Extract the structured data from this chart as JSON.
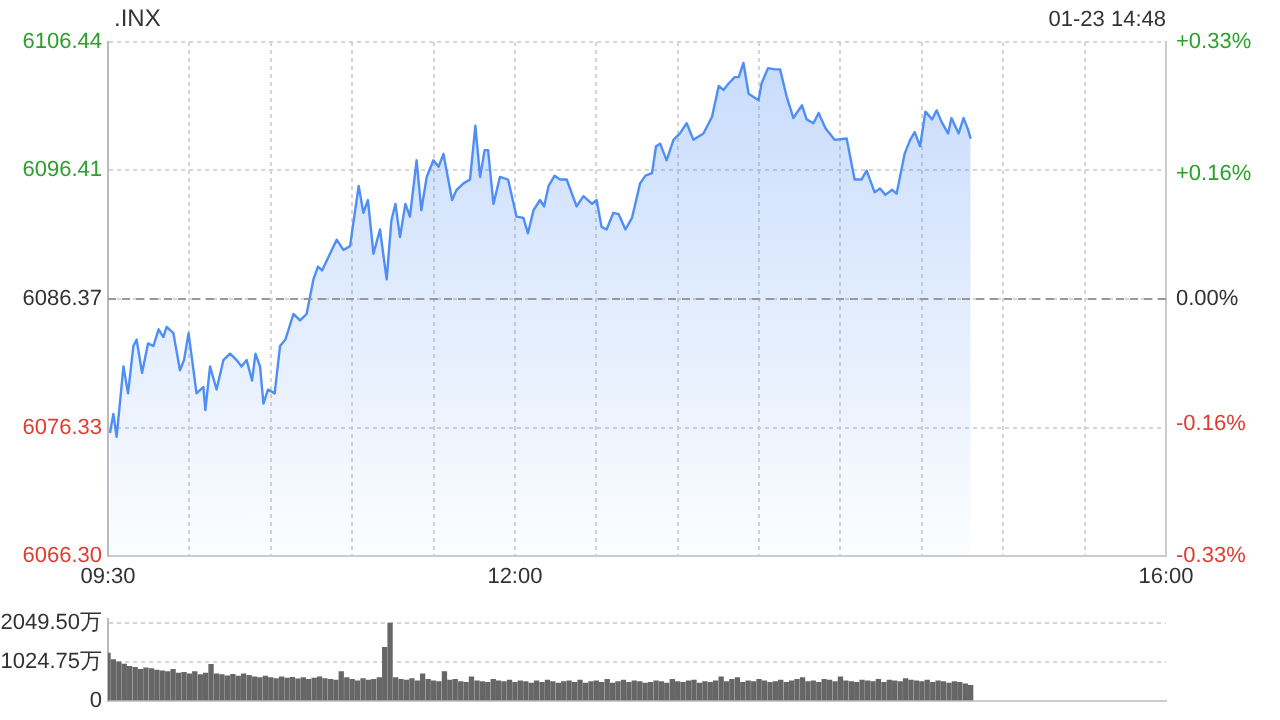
{
  "chart_data": [
    {
      "type": "area",
      "title": ".INX",
      "annotations": [
        "01-23 14:48"
      ],
      "x": [
        9.512,
        9.533,
        9.553,
        9.595,
        9.623,
        9.656,
        9.676,
        9.709,
        9.746,
        9.779,
        9.811,
        9.84,
        9.86,
        9.902,
        9.942,
        9.967,
        9.995,
        10.044,
        10.086,
        10.098,
        10.127,
        10.167,
        10.209,
        10.25,
        10.29,
        10.32,
        10.352,
        10.385,
        10.406,
        10.434,
        10.455,
        10.483,
        10.524,
        10.557,
        10.59,
        10.639,
        10.68,
        10.72,
        10.762,
        10.79,
        10.815,
        10.864,
        10.905,
        10.946,
        10.987,
        11.04,
        11.069,
        11.097,
        11.131,
        11.171,
        11.212,
        11.241,
        11.266,
        11.294,
        11.327,
        11.355,
        11.396,
        11.425,
        11.458,
        11.499,
        11.531,
        11.561,
        11.614,
        11.642,
        11.684,
        11.724,
        11.757,
        11.786,
        11.814,
        11.835,
        11.868,
        11.908,
        11.958,
        12.01,
        12.052,
        12.08,
        12.114,
        12.154,
        12.179,
        12.207,
        12.244,
        12.277,
        12.318,
        12.379,
        12.421,
        12.474,
        12.502,
        12.532,
        12.563,
        12.605,
        12.637,
        12.679,
        12.719,
        12.769,
        12.802,
        12.842,
        12.867,
        12.892,
        12.932,
        12.974,
        13.014,
        13.055,
        13.097,
        13.158,
        13.211,
        13.252,
        13.281,
        13.313,
        13.35,
        13.375,
        13.404,
        13.436,
        13.497,
        13.515,
        13.555,
        13.596,
        13.629,
        13.669,
        13.711,
        13.731,
        13.764,
        13.792,
        13.834,
        13.866,
        13.908,
        13.964,
        14.038,
        14.087,
        14.129,
        14.161,
        14.21,
        14.243,
        14.276,
        14.317,
        14.345,
        14.394,
        14.428,
        14.456,
        14.489,
        14.522,
        14.563,
        14.591,
        14.621,
        14.661,
        14.682,
        14.726,
        14.756,
        14.784,
        14.8
      ],
      "series": [
        {
          "color": "#4f8ef7",
          "values": [
            6075.9,
            6077.4,
            6075.6,
            6081.1,
            6079.0,
            6082.7,
            6083.2,
            6080.6,
            6082.9,
            6082.7,
            6084.0,
            6083.4,
            6084.2,
            6083.7,
            6080.8,
            6081.6,
            6083.7,
            6079.0,
            6079.5,
            6077.7,
            6081.1,
            6079.3,
            6081.6,
            6082.1,
            6081.6,
            6081.1,
            6081.6,
            6080.0,
            6082.1,
            6081.1,
            6078.2,
            6079.3,
            6079.0,
            6082.7,
            6083.2,
            6085.2,
            6084.7,
            6085.2,
            6087.9,
            6088.9,
            6088.6,
            6089.9,
            6091.0,
            6090.2,
            6090.5,
            6095.2,
            6093.1,
            6094.1,
            6089.9,
            6091.8,
            6087.9,
            6092.5,
            6093.8,
            6091.2,
            6093.8,
            6092.8,
            6097.2,
            6093.3,
            6095.9,
            6097.2,
            6096.7,
            6097.7,
            6094.1,
            6094.9,
            6095.4,
            6095.7,
            6099.9,
            6095.9,
            6098.0,
            6098.0,
            6093.8,
            6095.9,
            6095.7,
            6092.8,
            6092.7,
            6091.5,
            6093.3,
            6094.1,
            6093.6,
            6095.2,
            6096.0,
            6095.7,
            6095.7,
            6093.6,
            6094.4,
            6093.8,
            6094.1,
            6092.0,
            6091.8,
            6093.1,
            6093.0,
            6091.8,
            6092.7,
            6095.4,
            6096.0,
            6096.2,
            6098.3,
            6098.5,
            6097.2,
            6098.8,
            6099.3,
            6100.1,
            6098.8,
            6099.3,
            6100.6,
            6103.0,
            6102.7,
            6103.2,
            6103.7,
            6103.7,
            6104.8,
            6102.4,
            6101.9,
            6103.2,
            6104.4,
            6104.3,
            6104.3,
            6102.2,
            6100.5,
            6100.9,
            6101.5,
            6100.4,
            6100.1,
            6100.9,
            6099.7,
            6098.8,
            6098.9,
            6095.7,
            6095.7,
            6096.4,
            6094.7,
            6095.0,
            6094.5,
            6094.9,
            6094.6,
            6097.7,
            6098.8,
            6099.4,
            6098.3,
            6101.0,
            6100.4,
            6101.1,
            6100.2,
            6099.3,
            6100.5,
            6099.3,
            6100.5,
            6099.6,
            6098.9
          ]
        }
      ],
      "xlim": [
        9.5,
        16
      ],
      "xticks": [
        {
          "value": 9.5,
          "label": "09:30"
        },
        {
          "value": 10,
          "label": null
        },
        {
          "value": 10.5,
          "label": null
        },
        {
          "value": 11,
          "label": null
        },
        {
          "value": 11.5,
          "label": null
        },
        {
          "value": 12,
          "label": "12:00"
        },
        {
          "value": 12.5,
          "label": null
        },
        {
          "value": 13,
          "label": null
        },
        {
          "value": 13.5,
          "label": null
        },
        {
          "value": 14,
          "label": null
        },
        {
          "value": 14.5,
          "label": null
        },
        {
          "value": 15,
          "label": null
        },
        {
          "value": 15.5,
          "label": null
        },
        {
          "value": 16,
          "label": "16:00"
        }
      ],
      "ylim": [
        6066.3,
        6106.44
      ],
      "yticks": [
        {
          "value": 6066.3,
          "label": "6066.30"
        },
        6076.33,
        6086.37,
        6096.41,
        6106.44
      ],
      "y2lim": [
        -0.33,
        0.33
      ],
      "y2ticks": [
        {
          "value": -0.33,
          "label": "-0.33%"
        },
        {
          "value": -0.16,
          "label": "-0.16%"
        },
        {
          "value": 0,
          "label": "0.00%"
        },
        {
          "value": 0.16,
          "label": "+0.16%"
        },
        {
          "value": 0.33,
          "label": "+0.33%"
        }
      ],
      "ref_lines": [
        {
          "axis": "y",
          "value": 6086.37,
          "color": "#999999",
          "line_style": "dashed"
        }
      ],
      "grid": true,
      "legend": false,
      "marker": "none"
    },
    {
      "type": "bar",
      "x": [
        9.5,
        9.533,
        9.567,
        9.6,
        9.633,
        9.667,
        9.7,
        9.733,
        9.767,
        9.8,
        9.833,
        9.867,
        9.9,
        9.933,
        9.967,
        10,
        10.033,
        10.067,
        10.1,
        10.133,
        10.167,
        10.2,
        10.233,
        10.267,
        10.3,
        10.333,
        10.367,
        10.4,
        10.433,
        10.467,
        10.5,
        10.533,
        10.567,
        10.6,
        10.633,
        10.667,
        10.7,
        10.733,
        10.767,
        10.8,
        10.833,
        10.867,
        10.9,
        10.933,
        10.967,
        11,
        11.033,
        11.067,
        11.1,
        11.133,
        11.167,
        11.2,
        11.233,
        11.267,
        11.3,
        11.333,
        11.367,
        11.4,
        11.433,
        11.467,
        11.5,
        11.533,
        11.567,
        11.6,
        11.633,
        11.667,
        11.7,
        11.733,
        11.767,
        11.8,
        11.833,
        11.867,
        11.9,
        11.933,
        11.967,
        12,
        12.033,
        12.067,
        12.1,
        12.133,
        12.167,
        12.2,
        12.233,
        12.267,
        12.3,
        12.333,
        12.367,
        12.4,
        12.433,
        12.467,
        12.5,
        12.533,
        12.567,
        12.6,
        12.633,
        12.667,
        12.7,
        12.733,
        12.767,
        12.8,
        12.833,
        12.867,
        12.9,
        12.933,
        12.967,
        13,
        13.033,
        13.067,
        13.1,
        13.133,
        13.167,
        13.2,
        13.233,
        13.267,
        13.3,
        13.333,
        13.367,
        13.4,
        13.433,
        13.467,
        13.5,
        13.533,
        13.567,
        13.6,
        13.633,
        13.667,
        13.7,
        13.733,
        13.767,
        13.8,
        13.833,
        13.867,
        13.9,
        13.933,
        13.967,
        14,
        14.033,
        14.067,
        14.1,
        14.133,
        14.167,
        14.2,
        14.233,
        14.267,
        14.3,
        14.333,
        14.367,
        14.4,
        14.433,
        14.467,
        14.5,
        14.533,
        14.567,
        14.6,
        14.633,
        14.667,
        14.7,
        14.733,
        14.767,
        14.8
      ],
      "series": [
        {
          "color": "#666666",
          "values": [
            1250,
            1080,
            1020,
            960,
            900,
            870,
            820,
            860,
            840,
            800,
            780,
            760,
            820,
            720,
            740,
            700,
            760,
            680,
            720,
            950,
            700,
            680,
            650,
            690,
            640,
            700,
            660,
            620,
            600,
            640,
            600,
            580,
            620,
            590,
            610,
            570,
            600,
            560,
            590,
            620,
            580,
            560,
            540,
            760,
            600,
            560,
            520,
            580,
            540,
            560,
            600,
            1400,
            2040,
            600,
            560,
            540,
            580,
            520,
            700,
            560,
            520,
            500,
            760,
            540,
            560,
            500,
            480,
            620,
            520,
            500,
            480,
            560,
            520,
            500,
            540,
            480,
            520,
            500,
            460,
            520,
            480,
            540,
            500,
            460,
            500,
            520,
            480,
            540,
            460,
            500,
            520,
            480,
            560,
            460,
            500,
            540,
            480,
            520,
            500,
            460,
            480,
            520,
            500,
            460,
            560,
            500,
            480,
            520,
            540,
            460,
            500,
            480,
            520,
            620,
            500,
            560,
            600,
            480,
            520,
            500,
            560,
            520,
            480,
            500,
            540,
            480,
            520,
            560,
            600,
            500,
            520,
            480,
            560,
            540,
            500,
            620,
            520,
            500,
            480,
            540,
            520,
            500,
            560,
            480,
            540,
            520,
            500,
            580,
            540,
            520,
            500,
            540,
            480,
            520,
            500,
            460,
            500,
            480,
            440,
            400
          ]
        }
      ],
      "xlim": [
        9.5,
        16
      ],
      "ylim": [
        0,
        2150
      ],
      "yticks": [
        0,
        {
          "value": 1024.75,
          "label": "1024.75万"
        },
        {
          "value": 2049.5,
          "label": "2049.50万"
        }
      ],
      "grid": "y",
      "legend": false,
      "tick_labels": "y"
    }
  ]
}
